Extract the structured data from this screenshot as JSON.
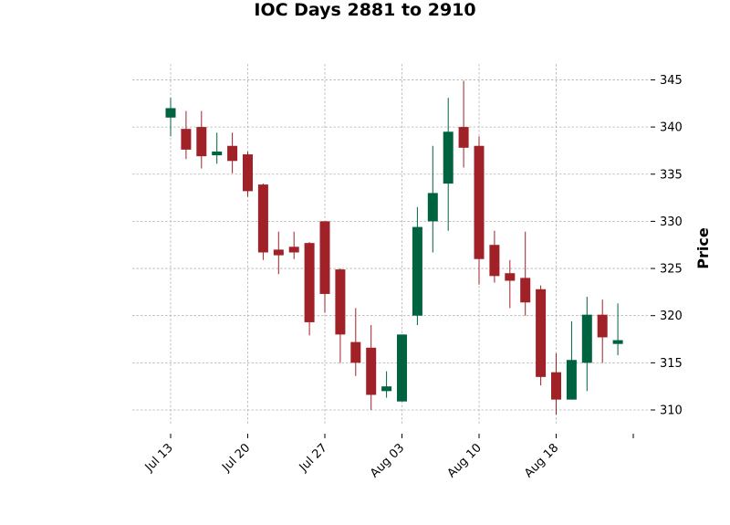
{
  "chart_data": {
    "type": "candlestick",
    "title": "IOC Days 2881 to 2910",
    "xlabel": "",
    "ylabel": "Price",
    "ylim": [
      308,
      346
    ],
    "y_ticks": [
      310,
      315,
      320,
      325,
      330,
      335,
      340,
      345
    ],
    "x_ticks": [
      {
        "index": 0,
        "label": "Jul 13"
      },
      {
        "index": 5,
        "label": "Jul 20"
      },
      {
        "index": 10,
        "label": "Jul 27"
      },
      {
        "index": 15,
        "label": "Aug 03"
      },
      {
        "index": 20,
        "label": "Aug 10"
      },
      {
        "index": 25,
        "label": "Aug 18"
      },
      {
        "index": 30,
        "label": ""
      }
    ],
    "grid": true,
    "colors": {
      "up": "#006340",
      "down": "#A02128"
    },
    "candles": [
      {
        "open": 341.0,
        "high": 343.1,
        "low": 339.0,
        "close": 342.0
      },
      {
        "open": 339.8,
        "high": 341.7,
        "low": 336.6,
        "close": 337.6
      },
      {
        "open": 340.0,
        "high": 341.7,
        "low": 335.6,
        "close": 336.9
      },
      {
        "open": 337.0,
        "high": 339.4,
        "low": 336.1,
        "close": 337.4
      },
      {
        "open": 338.0,
        "high": 339.4,
        "low": 335.1,
        "close": 336.4
      },
      {
        "open": 337.1,
        "high": 337.4,
        "low": 332.6,
        "close": 333.2
      },
      {
        "open": 333.9,
        "high": 334.0,
        "low": 325.9,
        "close": 326.7
      },
      {
        "open": 327.0,
        "high": 328.9,
        "low": 324.4,
        "close": 326.4
      },
      {
        "open": 327.3,
        "high": 328.9,
        "low": 326.0,
        "close": 326.7
      },
      {
        "open": 327.7,
        "high": 327.8,
        "low": 317.9,
        "close": 319.3
      },
      {
        "open": 330.0,
        "high": 330.0,
        "low": 320.3,
        "close": 322.3
      },
      {
        "open": 324.9,
        "high": 325.0,
        "low": 315.0,
        "close": 318.0
      },
      {
        "open": 317.2,
        "high": 320.8,
        "low": 313.6,
        "close": 315.0
      },
      {
        "open": 316.6,
        "high": 319.0,
        "low": 310.0,
        "close": 311.6
      },
      {
        "open": 312.0,
        "high": 314.1,
        "low": 311.3,
        "close": 312.5
      },
      {
        "open": 310.9,
        "high": 318.0,
        "low": 310.9,
        "close": 318.0
      },
      {
        "open": 320.0,
        "high": 331.5,
        "low": 319.0,
        "close": 329.4
      },
      {
        "open": 330.0,
        "high": 338.0,
        "low": 326.7,
        "close": 333.0
      },
      {
        "open": 334.0,
        "high": 343.1,
        "low": 329.0,
        "close": 339.5
      },
      {
        "open": 340.0,
        "high": 344.9,
        "low": 335.7,
        "close": 337.8
      },
      {
        "open": 338.0,
        "high": 339.0,
        "low": 323.3,
        "close": 326.0
      },
      {
        "open": 327.5,
        "high": 329.0,
        "low": 323.5,
        "close": 324.2
      },
      {
        "open": 324.5,
        "high": 325.9,
        "low": 320.8,
        "close": 323.7
      },
      {
        "open": 324.0,
        "high": 328.9,
        "low": 320.0,
        "close": 321.4
      },
      {
        "open": 322.8,
        "high": 323.2,
        "low": 312.6,
        "close": 313.5
      },
      {
        "open": 314.0,
        "high": 316.0,
        "low": 309.5,
        "close": 311.1
      },
      {
        "open": 311.1,
        "high": 319.4,
        "low": 311.1,
        "close": 315.3
      },
      {
        "open": 315.0,
        "high": 322.0,
        "low": 312.0,
        "close": 320.1
      },
      {
        "open": 320.1,
        "high": 321.7,
        "low": 315.0,
        "close": 317.7
      },
      {
        "open": 317.0,
        "high": 321.3,
        "low": 315.8,
        "close": 317.4
      }
    ]
  }
}
